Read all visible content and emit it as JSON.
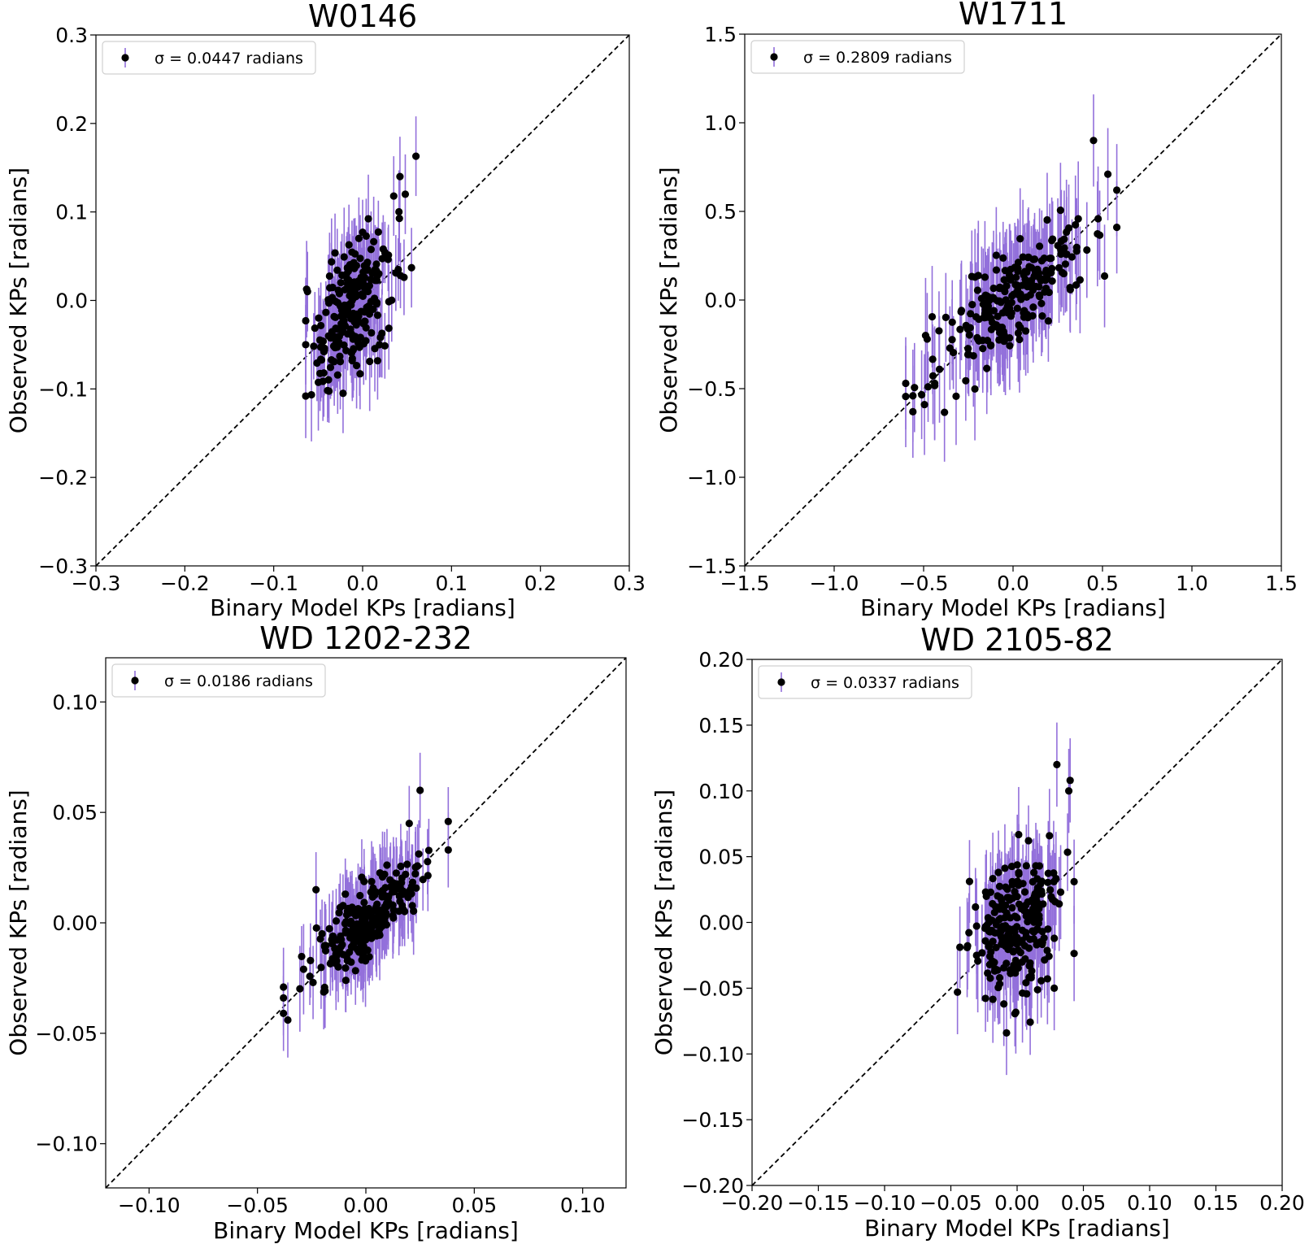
{
  "figure": {
    "xlabel": "Binary Model KPs [radians]",
    "ylabel": "Observed KPs [radians]",
    "colors": {
      "errorbar": "#9370db",
      "point": "#000000",
      "diagonal": "#000000",
      "axes": "#000000"
    }
  },
  "chart_data": [
    {
      "type": "scatter",
      "title": "W0146",
      "legend": "σ = 0.0447 radians",
      "legend_position": "upper-left",
      "sigma": 0.0447,
      "xlim": [
        -0.3,
        0.3
      ],
      "ylim": [
        -0.3,
        0.3
      ],
      "xticks": [
        "−0.3",
        "−0.2",
        "−0.1",
        "0.0",
        "0.1",
        "0.2",
        "0.3"
      ],
      "xtick_values": [
        -0.3,
        -0.2,
        -0.1,
        0.0,
        0.1,
        0.2,
        0.3
      ],
      "yticks": [
        "−0.3",
        "−0.2",
        "−0.1",
        "0.0",
        "0.1",
        "0.2",
        "0.3"
      ],
      "ytick_values": [
        -0.3,
        -0.2,
        -0.1,
        0.0,
        0.1,
        0.2,
        0.3
      ],
      "x_center": -0.01,
      "x_spread": 0.022,
      "x_min": -0.064,
      "x_max": 0.06,
      "slope": 0.75,
      "noise": 0.035,
      "yerr": 0.045,
      "n": 230,
      "seed": 11,
      "points": [
        [
          0.06,
          0.163
        ],
        [
          0.055,
          0.037
        ],
        [
          -0.062,
          0.01
        ],
        [
          -0.064,
          -0.05
        ],
        [
          -0.022,
          -0.105
        ],
        [
          0.042,
          0.14
        ],
        [
          0.048,
          0.12
        ],
        [
          0.035,
          0.118
        ]
      ]
    },
    {
      "type": "scatter",
      "title": "W1711",
      "legend": "σ = 0.2809 radians",
      "legend_position": "upper-left",
      "sigma": 0.2809,
      "xlim": [
        -1.5,
        1.5
      ],
      "ylim": [
        -1.5,
        1.5
      ],
      "xticks": [
        "−1.5",
        "−1.0",
        "−0.5",
        "0.0",
        "0.5",
        "1.0",
        "1.5"
      ],
      "xtick_values": [
        -1.5,
        -1.0,
        -0.5,
        0.0,
        0.5,
        1.0,
        1.5
      ],
      "yticks": [
        "−1.5",
        "−1.0",
        "−0.5",
        "0.0",
        "0.5",
        "1.0",
        "1.5"
      ],
      "ytick_values": [
        -1.5,
        -1.0,
        -0.5,
        0.0,
        0.5,
        1.0,
        1.5
      ],
      "x_center": 0.0,
      "x_spread": 0.2,
      "x_min": -0.6,
      "x_max": 0.6,
      "slope": 0.8,
      "noise": 0.13,
      "yerr": 0.26,
      "n": 230,
      "seed": 23,
      "points": [
        [
          -0.6,
          -0.47
        ],
        [
          -0.56,
          -0.63
        ],
        [
          -0.56,
          -0.54
        ],
        [
          -0.48,
          -0.22
        ],
        [
          0.45,
          0.9
        ],
        [
          0.53,
          0.71
        ],
        [
          0.58,
          0.62
        ],
        [
          0.58,
          0.41
        ]
      ]
    },
    {
      "type": "scatter",
      "title": "WD 1202-232",
      "legend": "σ = 0.0186 radians",
      "legend_position": "upper-left",
      "sigma": 0.0186,
      "xlim": [
        -0.12,
        0.12
      ],
      "ylim": [
        -0.12,
        0.12
      ],
      "xticks": [
        "−0.10",
        "−0.05",
        "0.00",
        "0.05",
        "0.10"
      ],
      "xtick_values": [
        -0.1,
        -0.05,
        0.0,
        0.05,
        0.1
      ],
      "yticks": [
        "−0.10",
        "−0.05",
        "0.00",
        "0.05",
        "0.10"
      ],
      "ytick_values": [
        -0.1,
        -0.05,
        0.0,
        0.05,
        0.1
      ],
      "x_center": 0.002,
      "x_spread": 0.013,
      "x_min": -0.038,
      "x_max": 0.038,
      "slope": 0.85,
      "noise": 0.008,
      "yerr": 0.017,
      "n": 250,
      "seed": 37,
      "points": [
        [
          -0.038,
          -0.034
        ],
        [
          -0.038,
          -0.041
        ],
        [
          -0.036,
          -0.044
        ],
        [
          -0.023,
          0.015
        ],
        [
          0.025,
          0.06
        ],
        [
          0.038,
          0.033
        ],
        [
          0.02,
          0.045
        ]
      ]
    },
    {
      "type": "scatter",
      "title": "WD 2105-82",
      "legend": "σ = 0.0337 radians",
      "legend_position": "upper-left",
      "sigma": 0.0337,
      "xlim": [
        -0.2,
        0.2
      ],
      "ylim": [
        -0.2,
        0.2
      ],
      "xticks": [
        "−0.20",
        "−0.15",
        "−0.10",
        "−0.05",
        "0.00",
        "0.05",
        "0.10",
        "0.15",
        "0.20"
      ],
      "xtick_values": [
        -0.2,
        -0.15,
        -0.1,
        -0.05,
        0.0,
        0.05,
        0.1,
        0.15,
        0.2
      ],
      "yticks": [
        "−0.20",
        "−0.15",
        "−0.10",
        "−0.05",
        "0.00",
        "0.05",
        "0.10",
        "0.15",
        "0.20"
      ],
      "ytick_values": [
        -0.2,
        -0.15,
        -0.1,
        -0.05,
        0.0,
        0.05,
        0.1,
        0.15,
        0.2
      ],
      "x_center": 0.0,
      "x_spread": 0.017,
      "x_min": -0.045,
      "x_max": 0.043,
      "slope": 0.55,
      "noise": 0.027,
      "yerr": 0.032,
      "n": 240,
      "seed": 53,
      "points": [
        [
          0.03,
          0.12
        ],
        [
          0.04,
          0.108
        ],
        [
          0.039,
          0.1
        ],
        [
          -0.045,
          -0.053
        ],
        [
          -0.008,
          -0.084
        ],
        [
          -0.01,
          -0.062
        ],
        [
          0.043,
          0.031
        ],
        [
          0.028,
          -0.05
        ]
      ]
    }
  ]
}
